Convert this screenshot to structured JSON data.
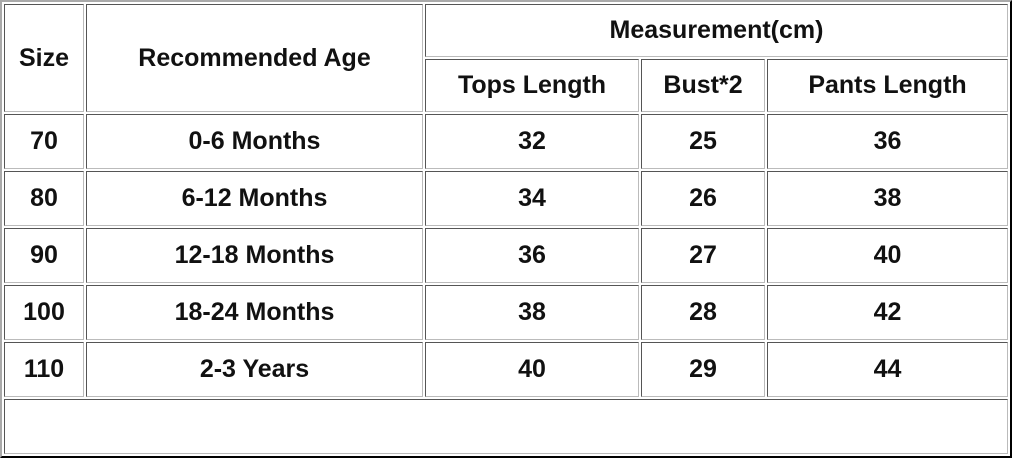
{
  "table": {
    "headers": {
      "size": "Size",
      "age": "Recommended Age",
      "measurement": "Measurement(cm)",
      "tops": "Tops Length",
      "bust": "Bust*2",
      "pants": "Pants Length"
    },
    "rows": [
      {
        "size": "70",
        "age": "0-6 Months",
        "tops": "32",
        "bust": "25",
        "pants": "36"
      },
      {
        "size": "80",
        "age": "6-12 Months",
        "tops": "34",
        "bust": "26",
        "pants": "38"
      },
      {
        "size": "90",
        "age": "12-18 Months",
        "tops": "36",
        "bust": "27",
        "pants": "40"
      },
      {
        "size": "100",
        "age": "18-24 Months",
        "tops": "38",
        "bust": "28",
        "pants": "42"
      },
      {
        "size": "110",
        "age": "2-3 Years",
        "tops": "40",
        "bust": "29",
        "pants": "44"
      }
    ]
  }
}
